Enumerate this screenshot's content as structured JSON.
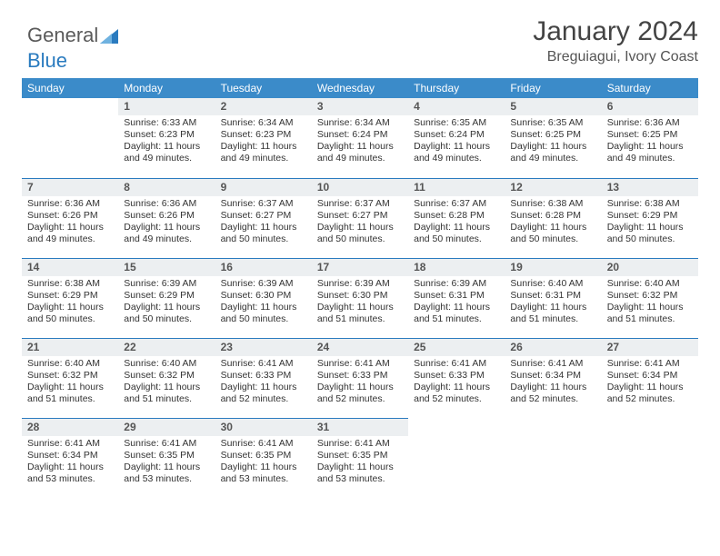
{
  "brand": {
    "word1": "General",
    "word2": "Blue"
  },
  "colors": {
    "headerBg": "#3b8bc9",
    "accent": "#2a7bbf",
    "dayRowBg": "#eceff1",
    "textMuted": "#555555"
  },
  "header": {
    "title": "January 2024",
    "subtitle": "Breguiagui, Ivory Coast"
  },
  "weekdays": [
    "Sunday",
    "Monday",
    "Tuesday",
    "Wednesday",
    "Thursday",
    "Friday",
    "Saturday"
  ],
  "grid": {
    "startWeekday": 1,
    "daysInMonth": 31
  },
  "days": {
    "1": {
      "sunrise": "6:33 AM",
      "sunset": "6:23 PM",
      "daylight": "11 hours and 49 minutes."
    },
    "2": {
      "sunrise": "6:34 AM",
      "sunset": "6:23 PM",
      "daylight": "11 hours and 49 minutes."
    },
    "3": {
      "sunrise": "6:34 AM",
      "sunset": "6:24 PM",
      "daylight": "11 hours and 49 minutes."
    },
    "4": {
      "sunrise": "6:35 AM",
      "sunset": "6:24 PM",
      "daylight": "11 hours and 49 minutes."
    },
    "5": {
      "sunrise": "6:35 AM",
      "sunset": "6:25 PM",
      "daylight": "11 hours and 49 minutes."
    },
    "6": {
      "sunrise": "6:36 AM",
      "sunset": "6:25 PM",
      "daylight": "11 hours and 49 minutes."
    },
    "7": {
      "sunrise": "6:36 AM",
      "sunset": "6:26 PM",
      "daylight": "11 hours and 49 minutes."
    },
    "8": {
      "sunrise": "6:36 AM",
      "sunset": "6:26 PM",
      "daylight": "11 hours and 49 minutes."
    },
    "9": {
      "sunrise": "6:37 AM",
      "sunset": "6:27 PM",
      "daylight": "11 hours and 50 minutes."
    },
    "10": {
      "sunrise": "6:37 AM",
      "sunset": "6:27 PM",
      "daylight": "11 hours and 50 minutes."
    },
    "11": {
      "sunrise": "6:37 AM",
      "sunset": "6:28 PM",
      "daylight": "11 hours and 50 minutes."
    },
    "12": {
      "sunrise": "6:38 AM",
      "sunset": "6:28 PM",
      "daylight": "11 hours and 50 minutes."
    },
    "13": {
      "sunrise": "6:38 AM",
      "sunset": "6:29 PM",
      "daylight": "11 hours and 50 minutes."
    },
    "14": {
      "sunrise": "6:38 AM",
      "sunset": "6:29 PM",
      "daylight": "11 hours and 50 minutes."
    },
    "15": {
      "sunrise": "6:39 AM",
      "sunset": "6:29 PM",
      "daylight": "11 hours and 50 minutes."
    },
    "16": {
      "sunrise": "6:39 AM",
      "sunset": "6:30 PM",
      "daylight": "11 hours and 50 minutes."
    },
    "17": {
      "sunrise": "6:39 AM",
      "sunset": "6:30 PM",
      "daylight": "11 hours and 51 minutes."
    },
    "18": {
      "sunrise": "6:39 AM",
      "sunset": "6:31 PM",
      "daylight": "11 hours and 51 minutes."
    },
    "19": {
      "sunrise": "6:40 AM",
      "sunset": "6:31 PM",
      "daylight": "11 hours and 51 minutes."
    },
    "20": {
      "sunrise": "6:40 AM",
      "sunset": "6:32 PM",
      "daylight": "11 hours and 51 minutes."
    },
    "21": {
      "sunrise": "6:40 AM",
      "sunset": "6:32 PM",
      "daylight": "11 hours and 51 minutes."
    },
    "22": {
      "sunrise": "6:40 AM",
      "sunset": "6:32 PM",
      "daylight": "11 hours and 51 minutes."
    },
    "23": {
      "sunrise": "6:41 AM",
      "sunset": "6:33 PM",
      "daylight": "11 hours and 52 minutes."
    },
    "24": {
      "sunrise": "6:41 AM",
      "sunset": "6:33 PM",
      "daylight": "11 hours and 52 minutes."
    },
    "25": {
      "sunrise": "6:41 AM",
      "sunset": "6:33 PM",
      "daylight": "11 hours and 52 minutes."
    },
    "26": {
      "sunrise": "6:41 AM",
      "sunset": "6:34 PM",
      "daylight": "11 hours and 52 minutes."
    },
    "27": {
      "sunrise": "6:41 AM",
      "sunset": "6:34 PM",
      "daylight": "11 hours and 52 minutes."
    },
    "28": {
      "sunrise": "6:41 AM",
      "sunset": "6:34 PM",
      "daylight": "11 hours and 53 minutes."
    },
    "29": {
      "sunrise": "6:41 AM",
      "sunset": "6:35 PM",
      "daylight": "11 hours and 53 minutes."
    },
    "30": {
      "sunrise": "6:41 AM",
      "sunset": "6:35 PM",
      "daylight": "11 hours and 53 minutes."
    },
    "31": {
      "sunrise": "6:41 AM",
      "sunset": "6:35 PM",
      "daylight": "11 hours and 53 minutes."
    }
  },
  "labels": {
    "sunrise": "Sunrise:",
    "sunset": "Sunset:",
    "daylight": "Daylight:"
  }
}
